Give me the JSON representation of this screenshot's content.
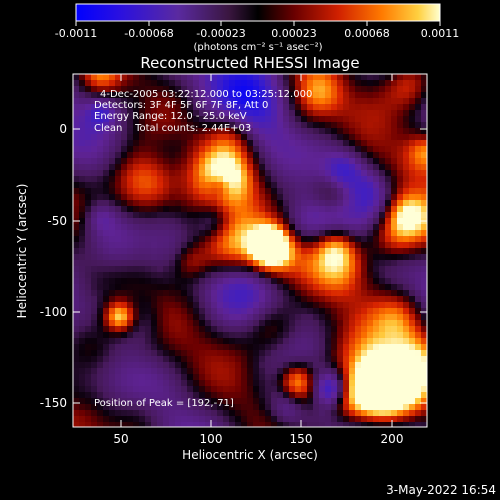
{
  "colorbar": {
    "tick_labels": [
      "-0.0011",
      "-0.00068",
      "-0.00023",
      "0.00023",
      "0.00068",
      "0.0011"
    ],
    "unit_label": "(photons cm⁻² s⁻¹ asec⁻²)",
    "stops": [
      "#0000ff",
      "#4b1fb0",
      "#6a2a8c",
      "#3b1a2e",
      "#000000",
      "#5a0000",
      "#c81400",
      "#ff5a00",
      "#ffb000",
      "#ffffc8"
    ]
  },
  "plot": {
    "title": "Reconstructed RHESSI Image",
    "xlabel": "Heliocentric X (arcsec)",
    "ylabel": "Heliocentric Y (arcsec)",
    "xticks": [
      "50",
      "100",
      "150",
      "200"
    ],
    "yticks": [
      "0",
      "-50",
      "-100",
      "-150"
    ],
    "xlim": [
      25,
      220
    ],
    "ylim": [
      -163,
      23
    ]
  },
  "annotations": {
    "line1": "4-Dec-2005 03:22:12.000 to 03:25:12.000",
    "line2": "Detectors: 3F 4F 5F 6F 7F 8F, Att 0",
    "line3": "Energy Range: 12.0 - 25.0 keV",
    "line4": "Clean    Total counts: 2.44E+03",
    "peak": "Position of Peak = [192,-71]"
  },
  "footer": {
    "timestamp": "3-May-2022 16:54"
  }
}
